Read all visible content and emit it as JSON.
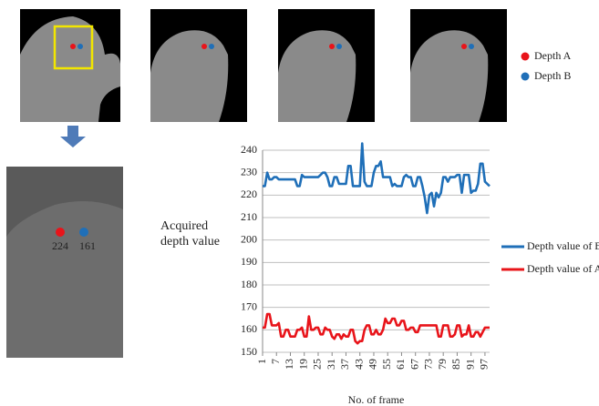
{
  "image_legend": [
    "Depth A",
    "Depth B"
  ],
  "zoom_labels": [
    "224",
    "161"
  ],
  "chart_data": {
    "type": "line",
    "y_label": "Acquired depth value",
    "x_label": "No. of frame",
    "x": [
      1,
      2,
      3,
      4,
      5,
      6,
      7,
      8,
      9,
      10,
      11,
      12,
      13,
      14,
      15,
      16,
      17,
      18,
      19,
      20,
      21,
      22,
      23,
      24,
      25,
      26,
      27,
      28,
      29,
      30,
      31,
      32,
      33,
      34,
      35,
      36,
      37,
      38,
      39,
      40,
      41,
      42,
      43,
      44,
      45,
      46,
      47,
      48,
      49,
      50,
      51,
      52,
      53,
      54,
      55,
      56,
      57,
      58,
      59,
      60,
      61,
      62,
      63,
      64,
      65,
      66,
      67,
      68,
      69,
      70,
      71,
      72,
      73,
      74,
      75,
      76,
      77,
      78,
      79,
      80,
      81,
      82,
      83,
      84,
      85,
      86,
      87,
      88,
      89,
      90,
      91,
      92,
      93,
      94,
      95,
      96,
      97,
      98,
      99
    ],
    "series": [
      {
        "name": "Depth value of B",
        "color": "#1f6fb8",
        "values": [
          224,
          224,
          230,
          227,
          227,
          228,
          228,
          227,
          227,
          227,
          227,
          227,
          227,
          227,
          227,
          224,
          224,
          229,
          228,
          228,
          228,
          228,
          228,
          228,
          228,
          229,
          230,
          230,
          228,
          224,
          224,
          228,
          228,
          225,
          225,
          225,
          225,
          233,
          233,
          224,
          224,
          224,
          224,
          243,
          226,
          224,
          224,
          224,
          230,
          233,
          233,
          235,
          228,
          228,
          228,
          228,
          224,
          225,
          224,
          224,
          224,
          228,
          229,
          228,
          228,
          224,
          224,
          228,
          228,
          224,
          219,
          212,
          220,
          221,
          215,
          221,
          219,
          221,
          228,
          228,
          226,
          228,
          228,
          228,
          229,
          229,
          221,
          229,
          229,
          229,
          221,
          222,
          222,
          225,
          234,
          234,
          226,
          225,
          224
        ]
      },
      {
        "name": "Depth value of A",
        "color": "#e8141a",
        "values": [
          161,
          161,
          167,
          167,
          162,
          162,
          162,
          163,
          157,
          157,
          160,
          160,
          157,
          157,
          157,
          160,
          160,
          161,
          157,
          157,
          166,
          160,
          160,
          161,
          161,
          158,
          158,
          161,
          160,
          160,
          157,
          156,
          158,
          158,
          156,
          158,
          157,
          157,
          160,
          160,
          155,
          154,
          155,
          155,
          160,
          162,
          162,
          158,
          158,
          160,
          158,
          158,
          160,
          165,
          163,
          163,
          165,
          165,
          162,
          162,
          164,
          164,
          160,
          160,
          161,
          161,
          159,
          159,
          162,
          162,
          162,
          162,
          162,
          162,
          162,
          162,
          157,
          157,
          162,
          162,
          162,
          157,
          157,
          158,
          162,
          162,
          157,
          158,
          158,
          162,
          157,
          157,
          159,
          159,
          157,
          159,
          161,
          161,
          161
        ]
      }
    ],
    "xlim": [
      1,
      99
    ],
    "xticks": [
      1,
      7,
      13,
      19,
      25,
      31,
      37,
      43,
      49,
      55,
      61,
      67,
      73,
      79,
      85,
      91,
      97
    ],
    "ylim": [
      150,
      240
    ],
    "yticks": [
      150,
      160,
      170,
      180,
      190,
      200,
      210,
      220,
      230,
      240
    ],
    "grid": true
  }
}
